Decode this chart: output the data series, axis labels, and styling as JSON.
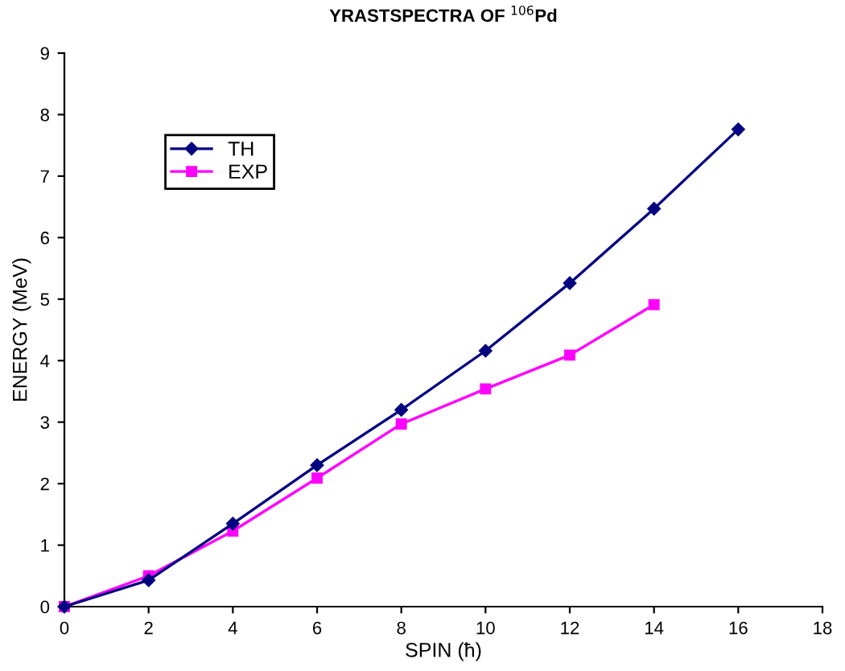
{
  "chart_data": {
    "type": "line",
    "title": "YRASTSPECTRA OF $^{106}$Pd",
    "xlabel": "SPIN (ħ)",
    "ylabel": "ENERGY (MeV)",
    "x": [
      0,
      2,
      4,
      6,
      8,
      10,
      12,
      14,
      16
    ],
    "series": [
      {
        "name": "TH",
        "color": "#000080",
        "marker": "diamond",
        "values": [
          0,
          0.43,
          1.35,
          2.3,
          3.2,
          4.16,
          5.26,
          6.47,
          7.76
        ]
      },
      {
        "name": "EXP",
        "color": "#ff00ff",
        "marker": "square",
        "values": [
          0,
          0.5,
          1.23,
          2.09,
          2.97,
          3.54,
          4.09,
          4.91,
          null
        ]
      }
    ],
    "xlim": [
      0,
      18
    ],
    "xticks": [
      0,
      2,
      4,
      6,
      8,
      10,
      12,
      14,
      16,
      18
    ],
    "ylim": [
      0,
      9
    ],
    "yticks": [
      0,
      1,
      2,
      3,
      4,
      5,
      6,
      7,
      8,
      9
    ],
    "grid": false,
    "legend": "top left",
    "line_style": "solid"
  }
}
